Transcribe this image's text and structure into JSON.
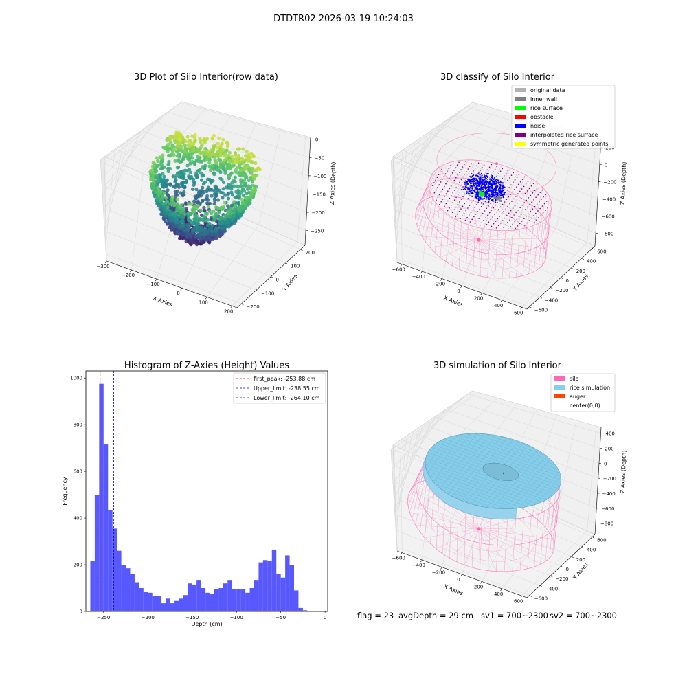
{
  "suptitle": "DTDTR02 2026-03-19 10:24:03",
  "status": {
    "flag": "flag = 23",
    "avg_depth": "avgDepth = 29 cm",
    "sv1": "sv1 = 700~2300",
    "sv2": "sv2 = 700~2300"
  },
  "colors": {
    "histogram_bar": "#4f4fff",
    "first_peak_line": "#ff0000",
    "limit_lines": "#0000cc",
    "silo": "#ff69b4",
    "rice_simulation": "#87ceeb",
    "auger": "#ff4500",
    "noise": "#0000ff",
    "rice_surface": "#00ff00",
    "obstacle": "#ff0000",
    "original_data": "#b3b3b3",
    "inner_wall": "#808080",
    "interpolated_rice_surface": "#800080",
    "symmetric_generated_points": "#ffff00"
  },
  "chart_data": [
    {
      "type": "scatter",
      "projection": "3d",
      "title": "3D Plot of Silo Interior(row data)",
      "xlabel": "X Axies",
      "ylabel": "Y Axies",
      "zlabel": "Z Axies (Depth)",
      "x_ticks": [
        -300,
        -200,
        -100,
        0,
        100,
        200
      ],
      "y_ticks": [
        -200,
        -100,
        0,
        100,
        200
      ],
      "z_ticks": [
        0,
        -50,
        -100,
        -150,
        -200,
        -250
      ],
      "xlim": [
        -300,
        220
      ],
      "ylim": [
        -230,
        230
      ],
      "zlim": [
        -290,
        5
      ],
      "colormap": "viridis",
      "grid": true
    },
    {
      "type": "scatter",
      "projection": "3d",
      "title": "3D classify of Silo Interior",
      "xlabel": "X Axies",
      "ylabel": "Y Axies",
      "zlabel": "Z Axies (Depth)",
      "x_ticks": [
        -600,
        -400,
        -200,
        0,
        200,
        400,
        600
      ],
      "y_ticks": [
        -600,
        -400,
        -200,
        0,
        200,
        400,
        600
      ],
      "z_ticks": [
        200,
        0,
        -200,
        -400,
        -600,
        -800
      ],
      "xlim": [
        -650,
        650
      ],
      "ylim": [
        -650,
        650
      ],
      "zlim": [
        -950,
        300
      ],
      "legend": [
        "original data",
        "inner wall",
        "rice surface",
        "obstacle",
        "noise",
        "interpolated rice surface",
        "symmetric generated points"
      ],
      "legend_loc": "upper right",
      "grid": true
    },
    {
      "type": "bar",
      "title": "Histogram of Z-Axies (Height) Values",
      "xlabel": "Depth (cm)",
      "ylabel": "Frequency",
      "x_ticks": [
        -250,
        -200,
        -150,
        -100,
        -50,
        0
      ],
      "y_ticks": [
        0,
        200,
        400,
        600,
        800,
        1000
      ],
      "xlim": [
        -270,
        3
      ],
      "ylim": [
        0,
        1030
      ],
      "bin_edges_start": -265,
      "bin_width": 5,
      "values": [
        215,
        500,
        975,
        715,
        435,
        355,
        260,
        200,
        185,
        160,
        125,
        100,
        85,
        80,
        65,
        65,
        35,
        55,
        35,
        45,
        55,
        70,
        120,
        115,
        135,
        100,
        80,
        75,
        95,
        100,
        120,
        135,
        95,
        95,
        95,
        80,
        100,
        135,
        210,
        220,
        215,
        265,
        160,
        145,
        240,
        200,
        90,
        15,
        5
      ],
      "vlines": [
        {
          "label": "first_peak: -253.88 cm",
          "x": -253.88,
          "color": "#ff0000"
        },
        {
          "label": "Upper_limit: -238.55 cm",
          "x": -238.55,
          "color": "#0000cc"
        },
        {
          "label": "Lower_limit: -264.10 cm",
          "x": -264.1,
          "color": "#0000cc"
        }
      ],
      "legend_loc": "upper right",
      "grid": false
    },
    {
      "type": "surface",
      "projection": "3d",
      "title": "3D simulation of Silo Interior",
      "xlabel": "X Axies",
      "ylabel": "Y Axies",
      "zlabel": "Z Axies (Depth)",
      "x_ticks": [
        -600,
        -400,
        -200,
        0,
        200,
        400,
        600
      ],
      "y_ticks": [
        -600,
        -400,
        -200,
        0,
        200,
        400,
        600
      ],
      "z_ticks": [
        400,
        200,
        0,
        -200,
        -400,
        -600,
        -800
      ],
      "xlim": [
        -650,
        650
      ],
      "ylim": [
        -650,
        650
      ],
      "zlim": [
        -950,
        480
      ],
      "legend": [
        "silo",
        "rice simulation",
        "auger",
        "center(0,0)"
      ],
      "legend_loc": "upper right",
      "grid": true
    }
  ]
}
